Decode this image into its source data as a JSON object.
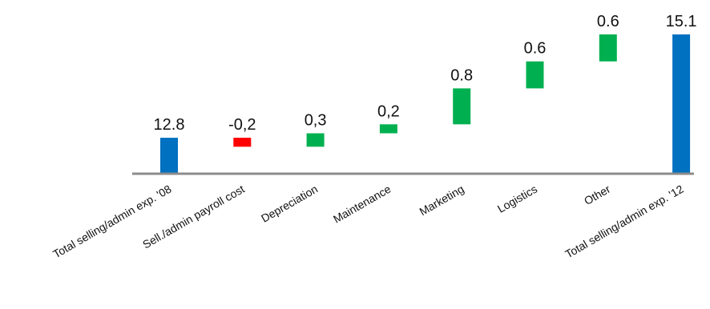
{
  "chart_data": {
    "type": "bar",
    "subtype": "waterfall",
    "title": "",
    "xlabel": "",
    "ylabel": "",
    "categories": [
      "Total selling/admin exp. '08",
      "Sell./admin payroll cost",
      "Depreciation",
      "Maintenance",
      "Marketing",
      "Logistics",
      "Other",
      "Total selling/admin exp. '12"
    ],
    "values": [
      12.8,
      -0.2,
      0.3,
      0.2,
      0.8,
      0.6,
      0.6,
      15.1
    ],
    "value_labels": [
      "12.8",
      "-0,2",
      "0,3",
      "0,2",
      "0.8",
      "0.6",
      "0.6",
      "15.1"
    ],
    "bar_kinds": [
      "total",
      "delta",
      "delta",
      "delta",
      "delta",
      "delta",
      "delta",
      "total"
    ],
    "baseline_value": 12.0,
    "ylim": [
      12.0,
      15.1
    ],
    "grid": false,
    "legend": "none",
    "colors": {
      "total": "#0070c0",
      "increase": "#00b050",
      "decrease": "#ff0000",
      "axis": "#8c8c8c"
    }
  }
}
